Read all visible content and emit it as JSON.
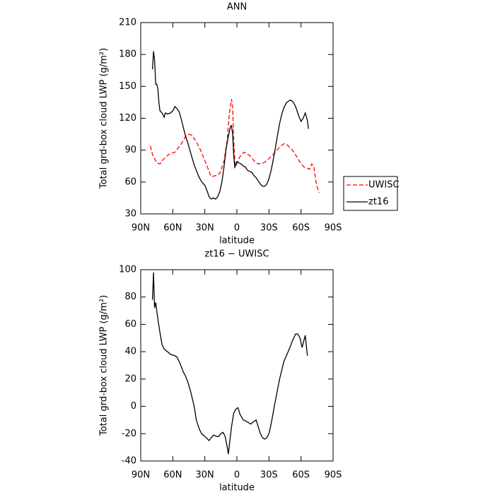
{
  "chart_data": [
    {
      "type": "line",
      "title": "ANN",
      "xlabel": "latitude",
      "ylabel": "Total grd-box cloud LWP (g/m²)",
      "xlim": [
        90,
        -90
      ],
      "xticks": [
        {
          "value": 90,
          "label": "90N"
        },
        {
          "value": 60,
          "label": "60N"
        },
        {
          "value": 30,
          "label": "30N"
        },
        0,
        {
          "value": -30,
          "label": "30S"
        },
        {
          "value": -60,
          "label": "60S"
        },
        {
          "value": -90,
          "label": "90S"
        }
      ],
      "ylim": [
        30,
        210
      ],
      "yticks": [
        30,
        60,
        90,
        120,
        150,
        180,
        210
      ],
      "legend": "right",
      "series": [
        {
          "name": "UWISC",
          "color": "#ff0000",
          "linestyle": "dashed",
          "x": [
            81,
            79,
            77,
            75,
            72,
            70,
            68,
            65,
            62,
            58,
            55,
            52,
            48,
            45,
            42,
            38,
            34,
            30,
            26,
            24,
            20,
            16,
            12,
            9,
            7,
            5,
            4,
            3,
            2,
            1,
            -1,
            -4,
            -7,
            -12,
            -16,
            -20,
            -25,
            -30,
            -35,
            -40,
            -44,
            -47,
            -52,
            -56,
            -60,
            -63,
            -66,
            -68,
            -70,
            -72,
            -74,
            -75,
            -77
          ],
          "values": [
            94,
            86,
            82,
            78,
            77,
            80,
            82,
            85,
            87,
            88,
            92,
            96,
            103,
            105,
            104,
            98,
            90,
            80,
            70,
            65,
            66,
            68,
            80,
            100,
            125,
            138,
            130,
            100,
            80,
            75,
            80,
            86,
            88,
            85,
            80,
            77,
            78,
            82,
            87,
            93,
            96,
            95,
            90,
            84,
            77,
            74,
            73,
            72,
            77,
            75,
            60,
            56,
            50
          ]
        },
        {
          "name": "zt16",
          "color": "#000000",
          "linestyle": "solid",
          "x": [
            79,
            78,
            77,
            76,
            75,
            74,
            73,
            72,
            70,
            68,
            67,
            65,
            62,
            60,
            58,
            56,
            54,
            52,
            50,
            48,
            46,
            44,
            42,
            40,
            38,
            36,
            34,
            32,
            30,
            28,
            26,
            24,
            22,
            20,
            18,
            16,
            14,
            12,
            10,
            8,
            6,
            5,
            4,
            3,
            2,
            1,
            0,
            -2,
            -4,
            -6,
            -8,
            -10,
            -12,
            -14,
            -16,
            -18,
            -20,
            -22,
            -24,
            -26,
            -28,
            -30,
            -32,
            -34,
            -36,
            -38,
            -40,
            -42,
            -44,
            -46,
            -48,
            -50,
            -52,
            -54,
            -56,
            -58,
            -60,
            -62,
            -64,
            -66,
            -67
          ],
          "values": [
            166,
            183,
            175,
            152,
            152,
            148,
            135,
            127,
            125,
            121,
            125,
            124,
            125,
            127,
            131,
            129,
            126,
            119,
            111,
            103,
            97,
            90,
            83,
            76,
            71,
            66,
            62,
            59,
            57,
            52,
            46,
            44,
            45,
            44,
            46,
            51,
            60,
            75,
            92,
            103,
            112,
            113,
            105,
            85,
            74,
            76,
            79,
            78,
            77,
            75,
            74,
            71,
            70,
            69,
            66,
            64,
            61,
            58,
            56,
            56,
            58,
            63,
            71,
            81,
            92,
            104,
            115,
            124,
            130,
            134,
            136,
            137,
            136,
            133,
            128,
            122,
            117,
            120,
            125,
            118,
            110
          ]
        }
      ]
    },
    {
      "type": "line",
      "title": "zt16 − UWISC",
      "xlabel": "latitude",
      "ylabel": "Total grd-box cloud LWP (g/m²)",
      "xlim": [
        90,
        -90
      ],
      "xticks": [
        {
          "value": 90,
          "label": "90N"
        },
        {
          "value": 60,
          "label": "60N"
        },
        {
          "value": 30,
          "label": "30N"
        },
        0,
        {
          "value": -30,
          "label": "30S"
        },
        {
          "value": -60,
          "label": "60S"
        },
        {
          "value": -90,
          "label": "90S"
        }
      ],
      "ylim": [
        -40,
        100
      ],
      "yticks": [
        -40,
        -20,
        0,
        20,
        40,
        60,
        80,
        100
      ],
      "color": "#000000",
      "x": [
        79,
        78,
        77,
        76,
        74,
        72,
        70,
        68,
        65,
        62,
        58,
        56,
        53,
        50,
        48,
        46,
        43,
        40,
        38,
        35,
        33,
        30,
        26,
        24,
        22,
        19,
        17,
        15,
        13,
        11,
        9,
        8,
        7,
        5,
        3,
        1,
        -1,
        -3,
        -6,
        -9,
        -11,
        -13,
        -16,
        -18,
        -20,
        -22,
        -24,
        -26,
        -28,
        -30,
        -32,
        -35,
        -38,
        -40,
        -44,
        -48,
        -50,
        -52,
        -55,
        -57,
        -59,
        -61,
        -64,
        -66
      ],
      "values": [
        78,
        98,
        72,
        76,
        64,
        54,
        45,
        42,
        40,
        38,
        37,
        36,
        31,
        25,
        22,
        18,
        10,
        0,
        -10,
        -17,
        -20,
        -22,
        -25,
        -23,
        -21,
        -22,
        -22,
        -20,
        -19,
        -22,
        -30,
        -35,
        -28,
        -15,
        -5,
        -2,
        -1,
        -6,
        -10,
        -11,
        -12,
        -13,
        -11,
        -10,
        -15,
        -20,
        -23,
        -24,
        -23,
        -20,
        -13,
        0,
        12,
        20,
        33,
        40,
        44,
        48,
        53,
        53,
        50,
        43,
        52,
        37
      ]
    }
  ]
}
